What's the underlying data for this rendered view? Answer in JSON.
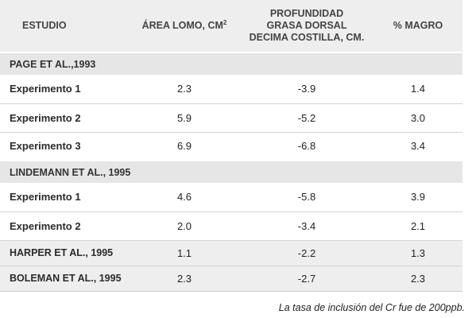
{
  "header": {
    "study": "ESTUDIO",
    "area": "ÁREA LOMO, cm",
    "area_sup": "2",
    "depth_line1": "PROFUNDIDAD",
    "depth_line2": "GRASA DORSAL",
    "depth_line3": "DECIMA COSTILLA, cm.",
    "lean": "% MAGRO"
  },
  "groups": [
    {
      "title": "PAGE ET AL.,1993",
      "rows": [
        {
          "name": "Experimento 1",
          "area": "2.3",
          "depth": "-3.9",
          "lean": "1.4"
        },
        {
          "name": "Experimento 2",
          "area": "5.9",
          "depth": "-5.2",
          "lean": "3.0"
        },
        {
          "name": "Experimento 3",
          "area": "6.9",
          "depth": "-6.8",
          "lean": "3.4"
        }
      ]
    },
    {
      "title": "LINDEMANN ET AL., 1995",
      "rows": [
        {
          "name": "Experimento 1",
          "area": "4.6",
          "depth": "-5.8",
          "lean": "3.9"
        },
        {
          "name": "Experimento 2",
          "area": "2.0",
          "depth": "-3.4",
          "lean": "2.1"
        }
      ]
    }
  ],
  "single_rows": [
    {
      "name": "HARPER ET AL., 1995",
      "area": "1.1",
      "depth": "-2.2",
      "lean": "1.3"
    },
    {
      "name": "BOLEMAN ET AL., 1995",
      "area": "2.3",
      "depth": "-2.7",
      "lean": "2.3"
    }
  ],
  "footnote": "La tasa de inclusión del Cr fue de 200ppb."
}
